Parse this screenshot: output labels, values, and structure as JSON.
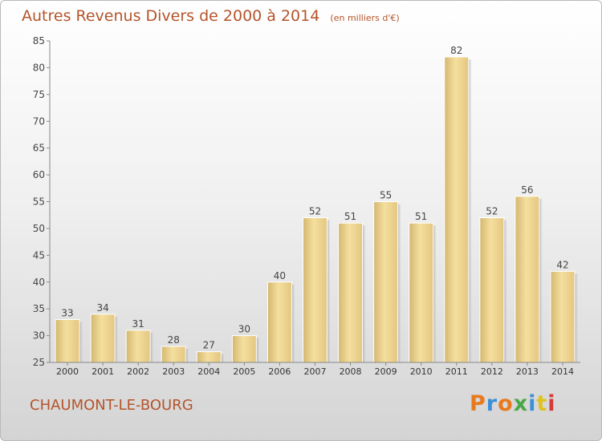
{
  "chart_data": {
    "type": "bar",
    "title": "Autres Revenus Divers de 2000 à 2014",
    "unit_label": "(en milliers d'€)",
    "categories": [
      "2000",
      "2001",
      "2002",
      "2003",
      "2004",
      "2005",
      "2006",
      "2007",
      "2008",
      "2009",
      "2010",
      "2011",
      "2012",
      "2013",
      "2014"
    ],
    "values": [
      33,
      34,
      31,
      28,
      27,
      30,
      40,
      52,
      51,
      55,
      51,
      82,
      52,
      56,
      42
    ],
    "ylim": [
      25,
      85
    ],
    "yticks": [
      25,
      30,
      35,
      40,
      45,
      50,
      55,
      60,
      65,
      70,
      75,
      80,
      85
    ],
    "grid": false,
    "bar_color": "#e8cd86"
  },
  "footer": {
    "location": "CHAUMONT-LE-BOURG",
    "brand": "Proxiti",
    "brand_colors": [
      "#e87a1e",
      "#3d8fd6",
      "#e87a1e",
      "#4aa847",
      "#3d8fd6",
      "#e0c21e",
      "#d73a3a"
    ]
  }
}
